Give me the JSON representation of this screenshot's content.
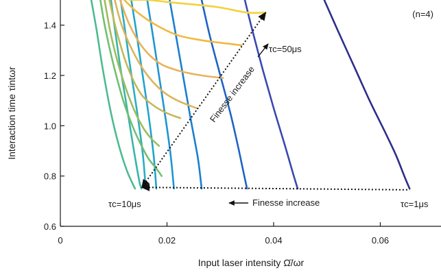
{
  "chart_data": {
    "type": "line",
    "xlabel": "Input laser intensity Ω̄/ωr",
    "ylabel": "Interaction time τintωr",
    "xlim": [
      0,
      0.071
    ],
    "ylim": [
      0.6,
      1.5
    ],
    "x_ticks": [
      {
        "v": 0,
        "label": "0"
      },
      {
        "v": 0.02,
        "label": "0.02"
      },
      {
        "v": 0.04,
        "label": "0.04"
      },
      {
        "v": 0.06,
        "label": "0.06"
      }
    ],
    "y_ticks": [
      {
        "v": 0.6,
        "label": "0.6"
      },
      {
        "v": 0.8,
        "label": "0.8"
      },
      {
        "v": 1.0,
        "label": "1.0"
      },
      {
        "v": 1.2,
        "label": "1.2"
      },
      {
        "v": 1.4,
        "label": "1.4"
      }
    ],
    "grid": false,
    "legend": "none",
    "series": [
      {
        "color": "#2e2e8a",
        "points": [
          [
            0.0495,
            1.5
          ],
          [
            0.052,
            1.38
          ],
          [
            0.055,
            1.24
          ],
          [
            0.058,
            1.1
          ],
          [
            0.061,
            0.97
          ],
          [
            0.063,
            0.88
          ],
          [
            0.0645,
            0.8
          ],
          [
            0.0655,
            0.75
          ]
        ]
      },
      {
        "color": "#3a48b0",
        "points": [
          [
            0.0346,
            1.5
          ],
          [
            0.036,
            1.38
          ],
          [
            0.038,
            1.22
          ],
          [
            0.04,
            1.07
          ],
          [
            0.042,
            0.93
          ],
          [
            0.0435,
            0.82
          ],
          [
            0.0445,
            0.75
          ]
        ]
      },
      {
        "color": "#1f63c4",
        "points": [
          [
            0.0265,
            1.5
          ],
          [
            0.028,
            1.36
          ],
          [
            0.03,
            1.2
          ],
          [
            0.032,
            1.04
          ],
          [
            0.0335,
            0.9
          ],
          [
            0.0345,
            0.8
          ],
          [
            0.035,
            0.75
          ]
        ]
      },
      {
        "color": "#1a7fd0",
        "points": [
          [
            0.0205,
            1.5
          ],
          [
            0.0215,
            1.38
          ],
          [
            0.023,
            1.2
          ],
          [
            0.0245,
            1.02
          ],
          [
            0.0258,
            0.87
          ],
          [
            0.0265,
            0.75
          ]
        ]
      },
      {
        "color": "#1f95d2",
        "points": [
          [
            0.0163,
            1.5
          ],
          [
            0.0172,
            1.38
          ],
          [
            0.0185,
            1.2
          ],
          [
            0.0198,
            1.02
          ],
          [
            0.0207,
            0.88
          ],
          [
            0.0213,
            0.75
          ]
        ]
      },
      {
        "color": "#20a4cd",
        "points": [
          [
            0.0133,
            1.5
          ],
          [
            0.0142,
            1.38
          ],
          [
            0.0153,
            1.22
          ],
          [
            0.0165,
            1.05
          ],
          [
            0.0175,
            0.88
          ],
          [
            0.018,
            0.75
          ]
        ]
      },
      {
        "color": "#27afbf",
        "points": [
          [
            0.0113,
            1.5
          ],
          [
            0.012,
            1.4
          ],
          [
            0.0132,
            1.22
          ],
          [
            0.0145,
            1.04
          ],
          [
            0.0155,
            0.88
          ],
          [
            0.016,
            0.75
          ]
        ]
      },
      {
        "color": "#37b6a8",
        "points": [
          [
            0.0095,
            1.5
          ],
          [
            0.01,
            1.42
          ],
          [
            0.0112,
            1.24
          ],
          [
            0.0125,
            1.07
          ],
          [
            0.0138,
            0.9
          ],
          [
            0.0148,
            0.78
          ],
          [
            0.0152,
            0.75
          ]
        ]
      },
      {
        "color": "#4cbb90",
        "points": [
          [
            0.0058,
            1.5
          ],
          [
            0.0068,
            1.38
          ],
          [
            0.008,
            1.22
          ],
          [
            0.0095,
            1.05
          ],
          [
            0.011,
            0.92
          ],
          [
            0.0125,
            0.82
          ],
          [
            0.014,
            0.75
          ]
        ]
      },
      {
        "color": "#72bf73",
        "points": [
          [
            0.0075,
            1.5
          ],
          [
            0.0085,
            1.38
          ],
          [
            0.01,
            1.24
          ],
          [
            0.0118,
            1.1
          ],
          [
            0.0135,
            1.0
          ],
          [
            0.015,
            0.93
          ],
          [
            0.0165,
            0.87
          ],
          [
            0.018,
            0.83
          ],
          [
            0.019,
            0.8
          ]
        ]
      },
      {
        "color": "#9dbd5e",
        "points": [
          [
            0.0083,
            1.5
          ],
          [
            0.0095,
            1.36
          ],
          [
            0.0112,
            1.22
          ],
          [
            0.0133,
            1.09
          ],
          [
            0.0153,
            1.0
          ],
          [
            0.017,
            0.95
          ],
          [
            0.0185,
            0.92
          ]
        ]
      },
      {
        "color": "#c5b75a",
        "points": [
          [
            0.0092,
            1.5
          ],
          [
            0.0105,
            1.38
          ],
          [
            0.0125,
            1.24
          ],
          [
            0.015,
            1.13
          ],
          [
            0.0175,
            1.08
          ],
          [
            0.02,
            1.05
          ],
          [
            0.0225,
            1.03
          ]
        ]
      },
      {
        "color": "#ddb45c",
        "points": [
          [
            0.0102,
            1.5
          ],
          [
            0.0115,
            1.4
          ],
          [
            0.0135,
            1.3
          ],
          [
            0.016,
            1.21
          ],
          [
            0.019,
            1.14
          ],
          [
            0.022,
            1.1
          ],
          [
            0.0255,
            1.07
          ]
        ]
      },
      {
        "color": "#e9b25a",
        "points": [
          [
            0.0112,
            1.5
          ],
          [
            0.013,
            1.4
          ],
          [
            0.0155,
            1.31
          ],
          [
            0.0185,
            1.25
          ],
          [
            0.022,
            1.22
          ],
          [
            0.0265,
            1.2
          ],
          [
            0.0305,
            1.19
          ]
        ]
      },
      {
        "color": "#efb940",
        "points": [
          [
            0.012,
            1.5
          ],
          [
            0.0145,
            1.45
          ],
          [
            0.018,
            1.4
          ],
          [
            0.022,
            1.36
          ],
          [
            0.0265,
            1.34
          ],
          [
            0.03,
            1.33
          ],
          [
            0.034,
            1.32
          ]
        ]
      },
      {
        "color": "#f2d23a",
        "points": [
          [
            0.013,
            1.5
          ],
          [
            0.0165,
            1.5
          ],
          [
            0.021,
            1.49
          ],
          [
            0.026,
            1.48
          ],
          [
            0.03,
            1.47
          ],
          [
            0.035,
            1.45
          ],
          [
            0.0385,
            1.45
          ]
        ]
      }
    ],
    "annotations": {
      "n_label": "(n=4)",
      "tau_50": "τc=50μs",
      "tau_10": "τc=10μs",
      "tau_1": "τc=1μs",
      "finesse_diag": "Finesse increase",
      "finesse_horiz": "Finesse increase"
    },
    "arrows": {
      "horizontal": {
        "from": [
          0.0655,
          0.745
        ],
        "to": [
          0.0153,
          0.755
        ]
      },
      "diagonal": {
        "from": [
          0.0153,
          0.755
        ],
        "to": [
          0.0385,
          1.45
        ]
      }
    }
  }
}
